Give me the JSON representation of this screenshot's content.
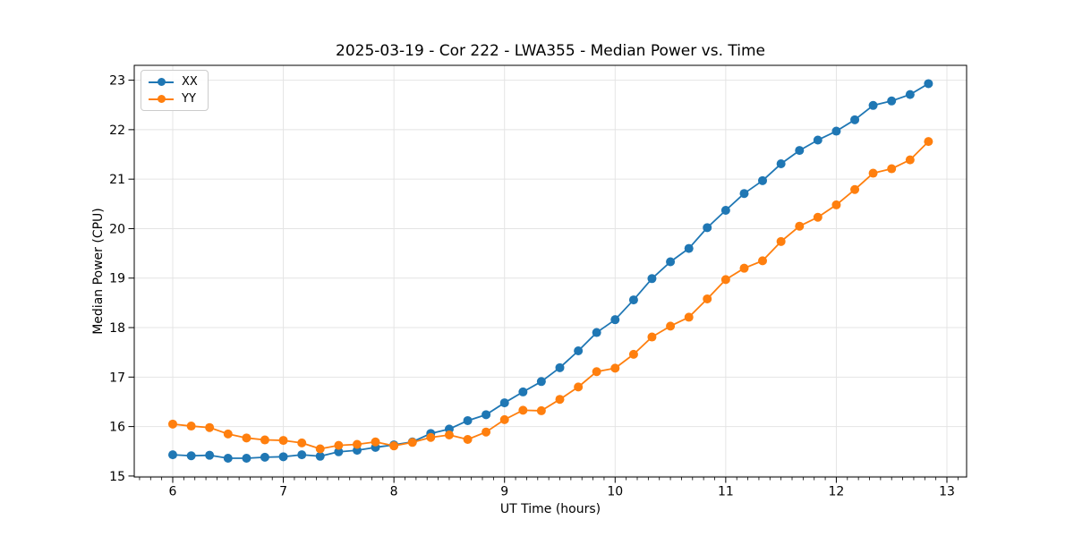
{
  "colors": {
    "background": "#ffffff",
    "grid": "#e4e4e4",
    "spine": "#000000",
    "text": "#000000"
  },
  "chart_data": {
    "type": "line",
    "title": "2025-03-19 - Cor 222 - LWA355 - Median Power vs. Time",
    "xlabel": "UT Time (hours)",
    "ylabel": "Median Power (CPU)",
    "xlim": [
      5.652,
      13.178
    ],
    "ylim": [
      14.98,
      23.3
    ],
    "x_ticks": [
      6,
      7,
      8,
      9,
      10,
      11,
      12,
      13
    ],
    "y_ticks": [
      15,
      16,
      17,
      18,
      19,
      20,
      21,
      22,
      23
    ],
    "x_minor_step": 0.1,
    "grid": true,
    "legend_position": "upper left",
    "marker": "o",
    "x": [
      6.0,
      6.167,
      6.333,
      6.5,
      6.667,
      6.833,
      7.0,
      7.167,
      7.333,
      7.5,
      7.667,
      7.833,
      8.0,
      8.167,
      8.333,
      8.5,
      8.667,
      8.833,
      9.0,
      9.167,
      9.333,
      9.5,
      9.667,
      9.833,
      10.0,
      10.167,
      10.333,
      10.5,
      10.667,
      10.833,
      11.0,
      11.167,
      11.333,
      11.5,
      11.667,
      11.833,
      12.0,
      12.167,
      12.333,
      12.5,
      12.667,
      12.833
    ],
    "series": [
      {
        "name": "XX",
        "color": "#1f77b4",
        "values": [
          15.43,
          15.41,
          15.42,
          15.36,
          15.36,
          15.38,
          15.39,
          15.43,
          15.4,
          15.49,
          15.52,
          15.58,
          15.63,
          15.69,
          15.86,
          15.95,
          16.12,
          16.24,
          16.48,
          16.7,
          16.91,
          17.19,
          17.53,
          17.9,
          18.16,
          18.56,
          18.99,
          19.33,
          19.6,
          20.02,
          20.37,
          20.71,
          20.97,
          21.31,
          21.58,
          21.79,
          21.97,
          22.2,
          22.49,
          22.58,
          22.71,
          22.93
        ]
      },
      {
        "name": "YY",
        "color": "#ff7f0e",
        "values": [
          16.05,
          16.01,
          15.98,
          15.85,
          15.77,
          15.73,
          15.72,
          15.67,
          15.55,
          15.62,
          15.64,
          15.69,
          15.61,
          15.68,
          15.78,
          15.83,
          15.74,
          15.89,
          16.14,
          16.33,
          16.32,
          16.55,
          16.8,
          17.11,
          17.18,
          17.46,
          17.81,
          18.03,
          18.21,
          18.58,
          18.97,
          19.2,
          19.35,
          19.74,
          20.05,
          20.23,
          20.48,
          20.79,
          21.12,
          21.21,
          21.39,
          21.76
        ]
      }
    ]
  }
}
